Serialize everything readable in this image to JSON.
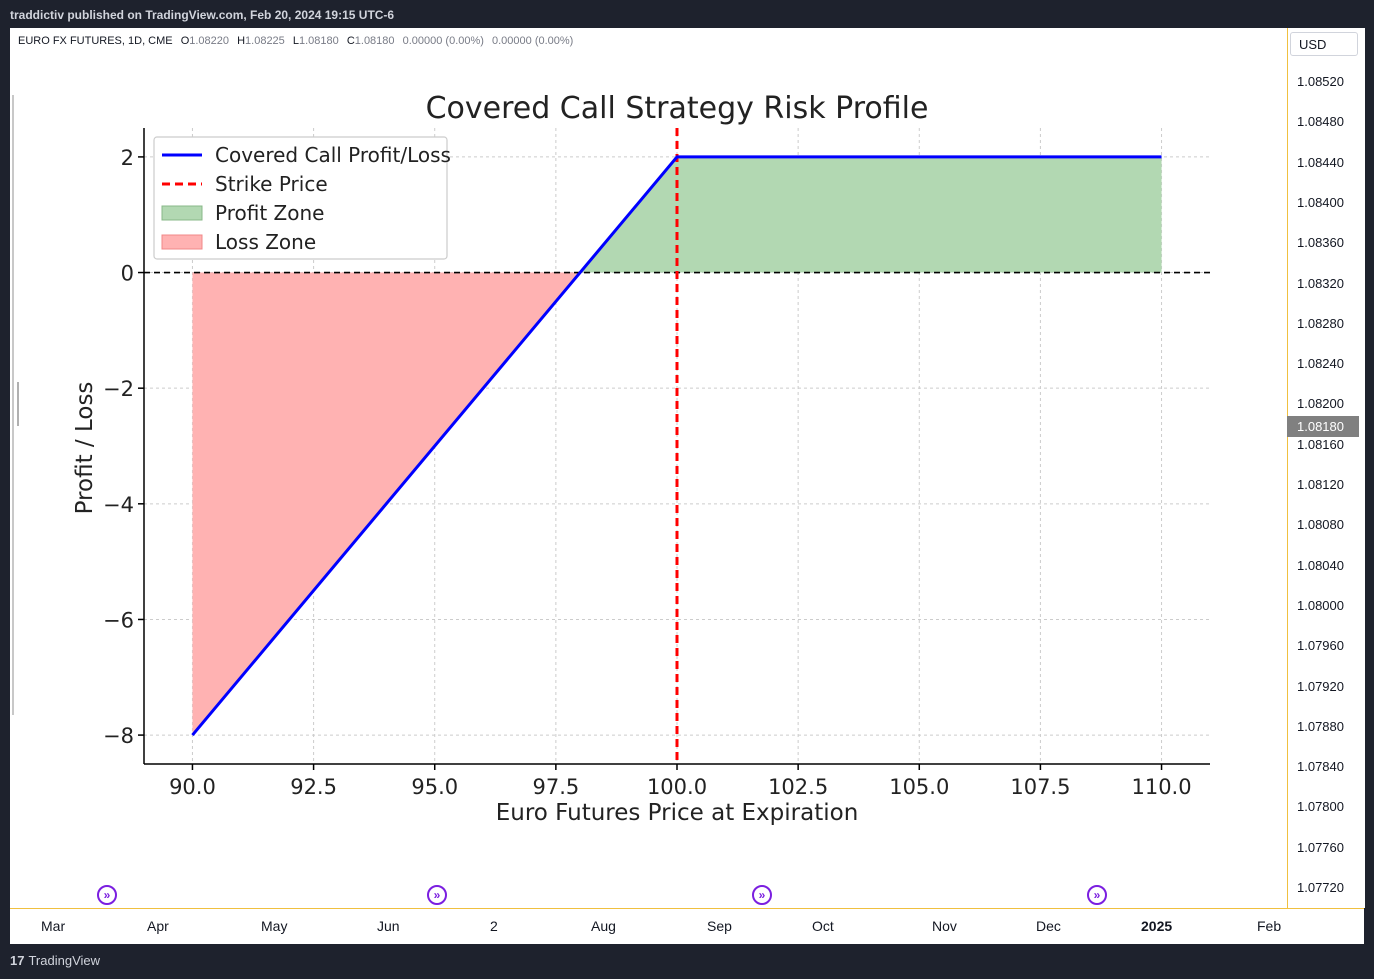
{
  "publisher": "traddictiv published on TradingView.com, Feb 20, 2024 19:15 UTC-6",
  "symbol_info": {
    "symbol": "EURO FX FUTURES, 1D, CME",
    "open_label": "O",
    "open": "1.08220",
    "high_label": "H",
    "high": "1.08225",
    "low_label": "L",
    "low": "1.08180",
    "close_label": "C",
    "close": "1.08180",
    "change": "0.00000 (0.00%)",
    "change2": "0.00000 (0.00%)"
  },
  "price_axis": {
    "currency": "USD",
    "ticks": [
      "1.08520",
      "1.08480",
      "1.08440",
      "1.08400",
      "1.08360",
      "1.08320",
      "1.08280",
      "1.08240",
      "1.08200",
      "1.08160",
      "1.08120",
      "1.08080",
      "1.08040",
      "1.08000",
      "1.07960",
      "1.07920",
      "1.07880",
      "1.07840",
      "1.07800",
      "1.07760",
      "1.07720"
    ],
    "current_price": "1.08180"
  },
  "time_axis": {
    "labels": [
      {
        "text": "Mar",
        "bold": false
      },
      {
        "text": "Apr",
        "bold": false
      },
      {
        "text": "May",
        "bold": false
      },
      {
        "text": "Jun",
        "bold": false
      },
      {
        "text": "2",
        "bold": false
      },
      {
        "text": "Aug",
        "bold": false
      },
      {
        "text": "Sep",
        "bold": false
      },
      {
        "text": "Oct",
        "bold": false
      },
      {
        "text": "Nov",
        "bold": false
      },
      {
        "text": "Dec",
        "bold": false
      },
      {
        "text": "2025",
        "bold": true
      },
      {
        "text": "Feb",
        "bold": false
      }
    ]
  },
  "branding": {
    "logo": "17",
    "name": "TradingView"
  },
  "chart_data": {
    "type": "line",
    "title": "Covered Call Strategy Risk Profile",
    "xlabel": "Euro Futures Price at Expiration",
    "ylabel": "Profit / Loss",
    "xlim": [
      89,
      111
    ],
    "ylim": [
      -8.5,
      2.5
    ],
    "xticks": [
      90.0,
      92.5,
      95.0,
      97.5,
      100.0,
      102.5,
      105.0,
      107.5,
      110.0
    ],
    "xtick_labels": [
      "90.0",
      "92.5",
      "95.0",
      "97.5",
      "100.0",
      "102.5",
      "105.0",
      "107.5",
      "110.0"
    ],
    "yticks": [
      2,
      0,
      -2,
      -4,
      -6,
      -8
    ],
    "ytick_labels": [
      "2",
      "0",
      "−2",
      "−4",
      "−6",
      "−8"
    ],
    "grid": true,
    "legend_placement": "top-left",
    "series": [
      {
        "name": "Covered Call Profit/Loss",
        "color": "#0000ff",
        "x": [
          90,
          100,
          110
        ],
        "y": [
          -8,
          2,
          2
        ]
      }
    ],
    "strike": {
      "name": "Strike Price",
      "x": 100,
      "color": "#ff0000"
    },
    "profit_zone": {
      "name": "Profit Zone",
      "color": "#b2d8b2"
    },
    "loss_zone": {
      "name": "Loss Zone",
      "color": "#ffb2b2"
    },
    "legend_labels": [
      "Covered Call Profit/Loss",
      "Strike Price",
      "Profit Zone",
      "Loss Zone"
    ]
  }
}
